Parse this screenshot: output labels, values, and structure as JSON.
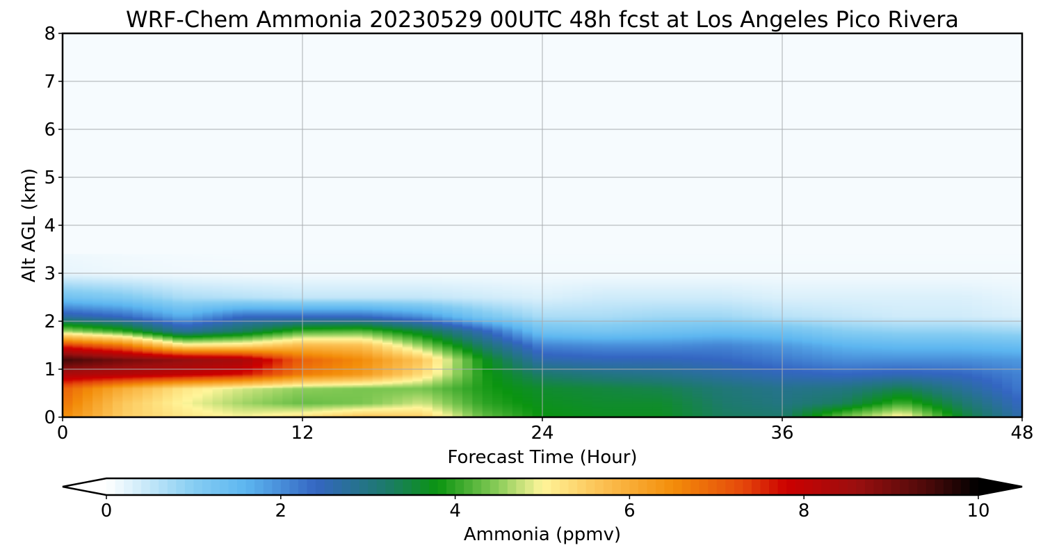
{
  "chart_data": {
    "type": "heatmap",
    "title": "WRF-Chem Ammonia  20230529 00UTC 48h fcst at Los Angeles Pico Rivera",
    "xlabel": "Forecast Time (Hour)",
    "ylabel": "Alt AGL (km)",
    "xlim": [
      0,
      48
    ],
    "ylim": [
      0,
      8
    ],
    "xticks": [
      0,
      12,
      24,
      36,
      48
    ],
    "yticks": [
      0,
      1,
      2,
      3,
      4,
      5,
      6,
      7,
      8
    ],
    "grid": true,
    "colorbar": {
      "label": "Ammonia  (ppmv)",
      "min": 0,
      "max": 10,
      "ticks": [
        0,
        2,
        4,
        6,
        8,
        10
      ],
      "extend": "both",
      "stops": [
        {
          "value": 0,
          "color": "#ffffff"
        },
        {
          "value": 1,
          "color": "#86cdf2"
        },
        {
          "value": 1.6,
          "color": "#5db6f0"
        },
        {
          "value": 2.4,
          "color": "#3466c2"
        },
        {
          "value": 3.2,
          "color": "#1d7a6c"
        },
        {
          "value": 3.8,
          "color": "#0a9410"
        },
        {
          "value": 4.5,
          "color": "#8ccd5a"
        },
        {
          "value": 5,
          "color": "#fff59a"
        },
        {
          "value": 5.6,
          "color": "#fcc65a"
        },
        {
          "value": 6.5,
          "color": "#f38d0a"
        },
        {
          "value": 7.3,
          "color": "#e5480b"
        },
        {
          "value": 7.8,
          "color": "#cc0000"
        },
        {
          "value": 8.6,
          "color": "#9b0f0f"
        },
        {
          "value": 9.4,
          "color": "#4d0a0a"
        },
        {
          "value": 10,
          "color": "#000000"
        }
      ]
    },
    "x": [
      0,
      3,
      6,
      9,
      12,
      15,
      18,
      21,
      24,
      27,
      30,
      33,
      36,
      39,
      42,
      45,
      48
    ],
    "altitudes": [
      0,
      0.3,
      0.6,
      0.9,
      1.2,
      1.5,
      1.8,
      2.1,
      2.5,
      3.0,
      4.0,
      8.0
    ],
    "values": [
      [
        6.5,
        5.5,
        5.2,
        5.0,
        5.3,
        5.7,
        5.5,
        4.3,
        3.8,
        3.7,
        3.7,
        3.3,
        3.2,
        4.4,
        5.2,
        3.6,
        2.6
      ],
      [
        6.8,
        5.6,
        5.0,
        4.6,
        4.3,
        4.4,
        4.8,
        4.0,
        3.7,
        3.6,
        3.6,
        3.2,
        3.0,
        3.3,
        4.1,
        3.2,
        2.4
      ],
      [
        7.0,
        6.0,
        5.2,
        4.8,
        4.5,
        4.4,
        4.4,
        3.9,
        3.6,
        3.5,
        3.4,
        3.1,
        2.9,
        3.0,
        3.4,
        2.8,
        2.2
      ],
      [
        8.3,
        8.2,
        8.0,
        7.7,
        6.7,
        6.3,
        5.3,
        3.9,
        3.2,
        3.0,
        2.9,
        2.7,
        2.5,
        2.4,
        2.5,
        2.4,
        2.1
      ],
      [
        9.5,
        9.0,
        8.7,
        8.4,
        7.0,
        6.5,
        5.6,
        3.8,
        2.6,
        2.5,
        2.5,
        2.4,
        2.2,
        2.0,
        2.0,
        2.0,
        1.9
      ],
      [
        7.5,
        6.8,
        5.2,
        5.3,
        5.8,
        5.7,
        4.5,
        3.2,
        2.1,
        2.0,
        2.0,
        2.1,
        1.9,
        1.6,
        1.5,
        1.5,
        1.4
      ],
      [
        4.6,
        4.0,
        2.8,
        3.3,
        4.1,
        4.2,
        3.5,
        2.5,
        1.3,
        1.2,
        1.3,
        1.4,
        1.3,
        1.0,
        0.9,
        0.9,
        0.8
      ],
      [
        2.7,
        2.4,
        1.7,
        2.4,
        2.4,
        2.4,
        2.0,
        1.2,
        0.7,
        0.7,
        0.8,
        0.8,
        0.6,
        0.5,
        0.4,
        0.4,
        0.3
      ],
      [
        1.3,
        1.1,
        0.7,
        0.6,
        0.5,
        0.5,
        0.5,
        0.4,
        0.3,
        0.4,
        0.4,
        0.4,
        0.3,
        0.3,
        0.3,
        0.3,
        0.2
      ],
      [
        0.2,
        0.15,
        0.12,
        0.1,
        0.1,
        0.1,
        0.1,
        0.1,
        0.1,
        0.1,
        0.1,
        0.1,
        0.1,
        0.1,
        0.1,
        0.1,
        0.1
      ],
      [
        0.05,
        0.05,
        0.05,
        0.05,
        0.05,
        0.05,
        0.05,
        0.05,
        0.05,
        0.05,
        0.05,
        0.05,
        0.05,
        0.05,
        0.05,
        0.05,
        0.05
      ],
      [
        0.05,
        0.05,
        0.05,
        0.05,
        0.05,
        0.05,
        0.05,
        0.05,
        0.05,
        0.05,
        0.05,
        0.05,
        0.05,
        0.05,
        0.05,
        0.05,
        0.05
      ]
    ]
  }
}
